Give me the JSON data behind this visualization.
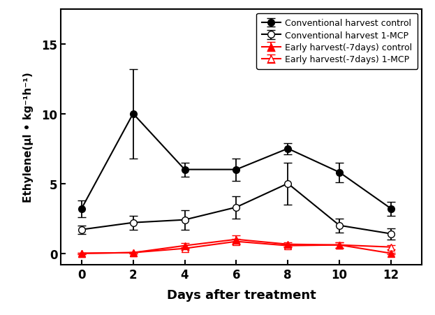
{
  "x": [
    0,
    2,
    4,
    6,
    8,
    10,
    12
  ],
  "conv_control_y": [
    3.2,
    10.0,
    6.0,
    6.0,
    7.5,
    5.8,
    3.2
  ],
  "conv_control_err": [
    0.6,
    3.2,
    0.5,
    0.8,
    0.4,
    0.7,
    0.5
  ],
  "conv_mcp_y": [
    1.7,
    2.2,
    2.4,
    3.3,
    5.0,
    2.0,
    1.4
  ],
  "conv_mcp_err": [
    0.3,
    0.5,
    0.7,
    0.8,
    1.5,
    0.5,
    0.4
  ],
  "early_control_y": [
    0.0,
    0.05,
    0.55,
    1.0,
    0.65,
    0.6,
    0.0
  ],
  "early_control_err": [
    0.05,
    0.05,
    0.2,
    0.3,
    0.15,
    0.2,
    0.05
  ],
  "early_mcp_y": [
    0.0,
    0.05,
    0.35,
    0.85,
    0.55,
    0.6,
    0.45
  ],
  "early_mcp_err": [
    0.05,
    0.05,
    0.1,
    0.2,
    0.1,
    0.2,
    0.15
  ],
  "xlabel": "Days after treatment",
  "ylabel": "Ethylene(μl • kg⁻¹h⁻¹)",
  "ylim": [
    -0.8,
    17.5
  ],
  "yticks": [
    0,
    5,
    10,
    15
  ],
  "xticks": [
    0,
    2,
    4,
    6,
    8,
    10,
    12
  ],
  "legend_labels": [
    "Conventional harvest control",
    "Conventional harvest 1-MCP",
    "Early harvest(-7days) control",
    "Early harvest(-7days) 1-MCP"
  ],
  "color_black": "#000000",
  "color_red": "#ff0000",
  "figsize": [
    6.23,
    4.52
  ],
  "dpi": 100
}
